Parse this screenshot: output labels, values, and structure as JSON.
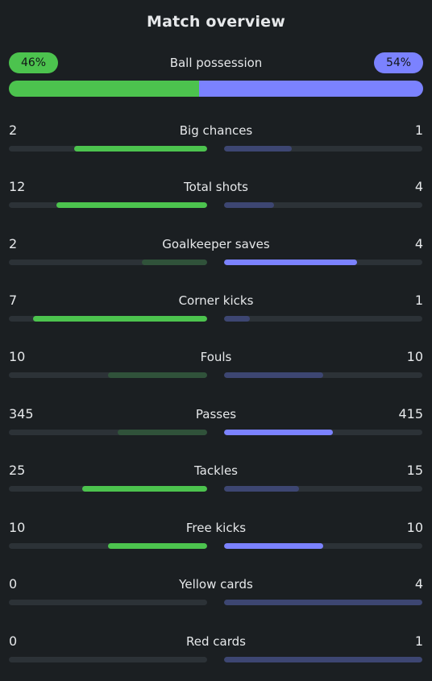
{
  "title": "Match overview",
  "colors": {
    "home": "#4cc34e",
    "away": "#7b82ff",
    "home_dim": "#30523a",
    "away_dim": "#3d4672",
    "track": "#2c3237",
    "background": "#1b1f22"
  },
  "possession": {
    "label": "Ball possession",
    "home_text": "46%",
    "away_text": "54%",
    "home_value": 46,
    "away_value": 54
  },
  "stats": [
    {
      "name": "Big chances",
      "home": "2",
      "away": "1",
      "home_fill": 0.67,
      "away_fill": 0.34,
      "highlight": "home"
    },
    {
      "name": "Total shots",
      "home": "12",
      "away": "4",
      "home_fill": 0.76,
      "away_fill": 0.25,
      "highlight": "home"
    },
    {
      "name": "Goalkeeper saves",
      "home": "2",
      "away": "4",
      "home_fill": 0.33,
      "away_fill": 0.67,
      "highlight": "away"
    },
    {
      "name": "Corner kicks",
      "home": "7",
      "away": "1",
      "home_fill": 0.88,
      "away_fill": 0.13,
      "highlight": "home"
    },
    {
      "name": "Fouls",
      "home": "10",
      "away": "10",
      "home_fill": 0.5,
      "away_fill": 0.5,
      "highlight": "none"
    },
    {
      "name": "Passes",
      "home": "345",
      "away": "415",
      "home_fill": 0.45,
      "away_fill": 0.55,
      "highlight": "away"
    },
    {
      "name": "Tackles",
      "home": "25",
      "away": "15",
      "home_fill": 0.63,
      "away_fill": 0.38,
      "highlight": "home"
    },
    {
      "name": "Free kicks",
      "home": "10",
      "away": "10",
      "home_fill": 0.5,
      "away_fill": 0.5,
      "highlight": "both"
    },
    {
      "name": "Yellow cards",
      "home": "0",
      "away": "4",
      "home_fill": 0,
      "away_fill": 1,
      "highlight": "none"
    },
    {
      "name": "Red cards",
      "home": "0",
      "away": "1",
      "home_fill": 0,
      "away_fill": 1,
      "highlight": "none"
    }
  ]
}
